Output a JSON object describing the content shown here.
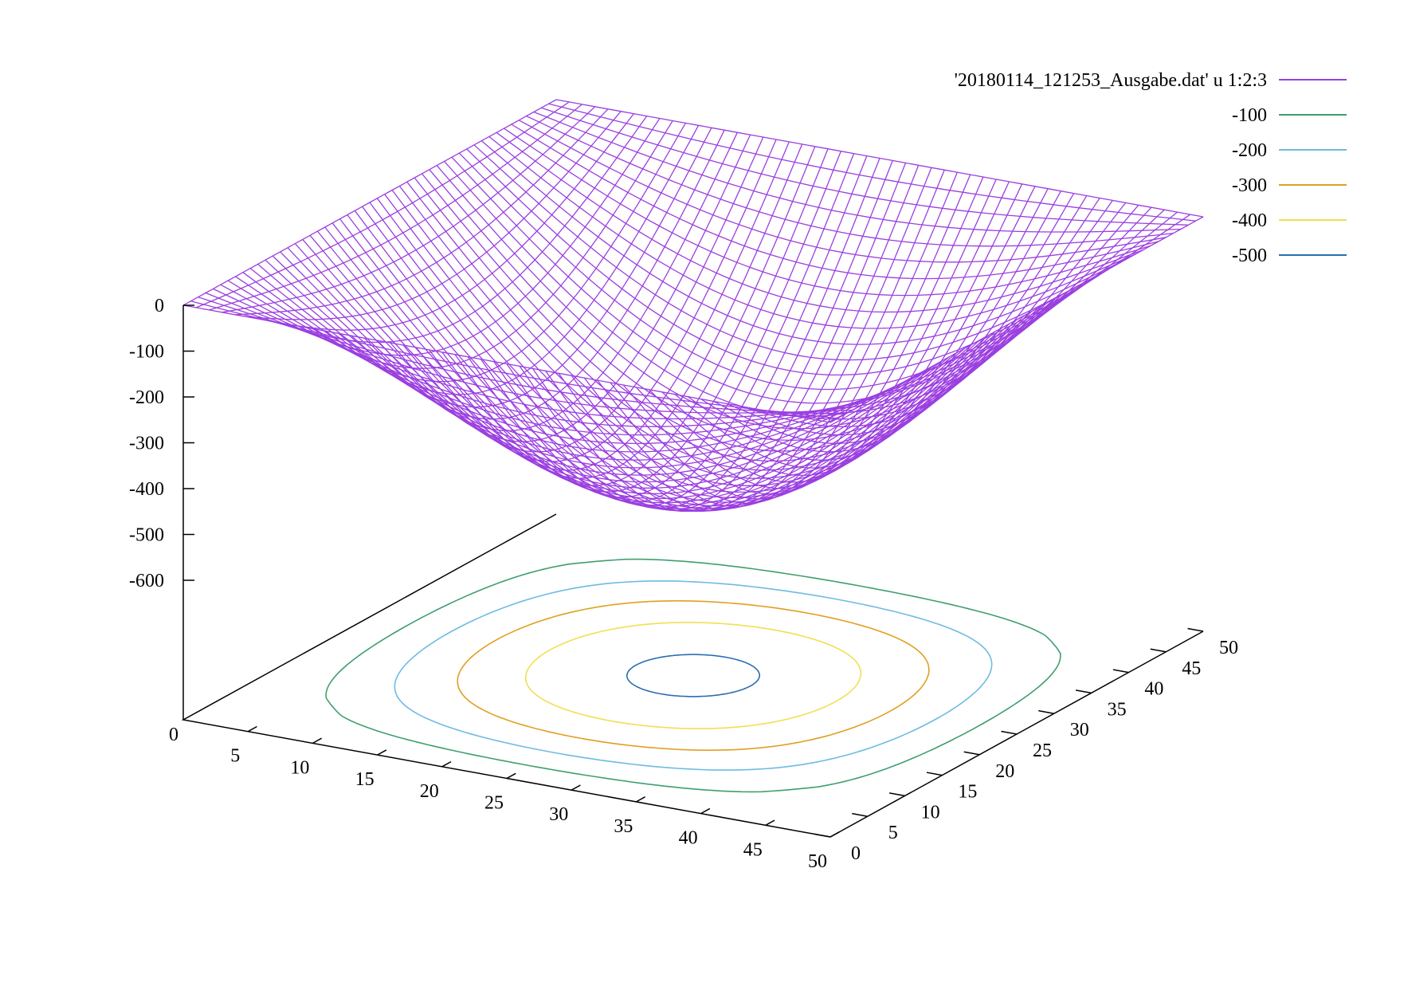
{
  "chart_data": {
    "type": "surface3d",
    "title": "",
    "xlabel": "",
    "ylabel": "",
    "zlabel": "",
    "x_range": [
      0,
      50
    ],
    "y_range": [
      0,
      50
    ],
    "z_range": [
      -600,
      0
    ],
    "x_ticks": [
      "5",
      "10",
      "15",
      "20",
      "25",
      "30",
      "35",
      "40",
      "45",
      "50"
    ],
    "y_ticks": [
      "0",
      "5",
      "10",
      "15",
      "20",
      "25",
      "30",
      "35",
      "40",
      "45",
      "50"
    ],
    "z_ticks": [
      "0",
      "-100",
      "-200",
      "-300",
      "-400",
      "-500",
      "-600"
    ],
    "origin_label": "0",
    "grid_size": 50,
    "surface": {
      "name": "'20180114_121253_Ausgabe.dat' u 1:2:3",
      "color": "#9b3fe0",
      "min_value": -520,
      "max_value": 0
    },
    "contours": [
      {
        "level": -100,
        "label": "-100",
        "color": "#3f9e6e"
      },
      {
        "level": -200,
        "label": "-200",
        "color": "#6fbbe3"
      },
      {
        "level": -300,
        "label": "-300",
        "color": "#e0a020"
      },
      {
        "level": -400,
        "label": "-400",
        "color": "#f0e050"
      },
      {
        "level": -500,
        "label": "-500",
        "color": "#2a6eb0"
      }
    ],
    "legend_position": "top-right"
  }
}
